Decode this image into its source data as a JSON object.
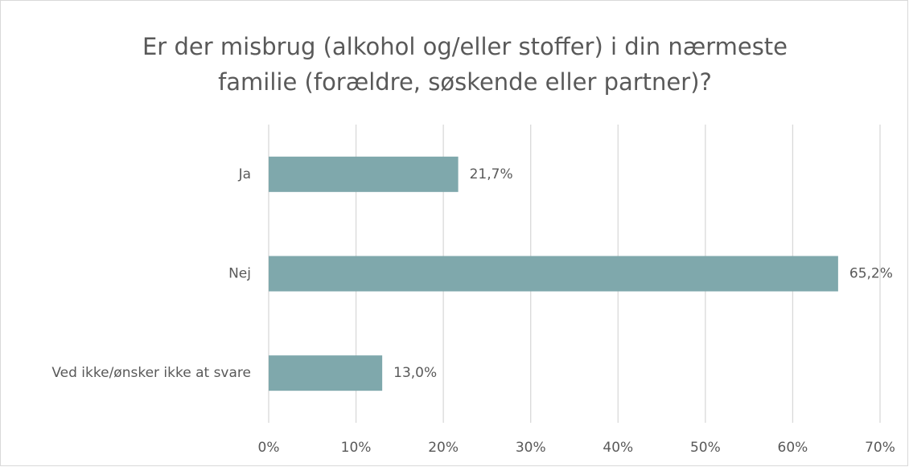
{
  "chart_data": {
    "type": "barh",
    "title": [
      "Er der misbrug (alkohol og/eller stoffer) i din nærmeste",
      "familie (forældre, søskende eller partner)?"
    ],
    "categories": [
      "Ja",
      "Nej",
      "Ved ikke/ønsker ikke at svare"
    ],
    "values": [
      21.7,
      65.2,
      13.0
    ],
    "value_labels": [
      "21,7%",
      "65,2%",
      "13,0%"
    ],
    "color": "#7fa8ac",
    "xlim": [
      0,
      70
    ],
    "xticks": [
      {
        "value": 0,
        "label": "0%"
      },
      {
        "value": 10,
        "label": "10%"
      },
      {
        "value": 20,
        "label": "20%"
      },
      {
        "value": 30,
        "label": "30%"
      },
      {
        "value": 40,
        "label": "40%"
      },
      {
        "value": 50,
        "label": "50%"
      },
      {
        "value": 60,
        "label": "60%"
      },
      {
        "value": 70,
        "label": "70%"
      }
    ],
    "grid": true
  }
}
